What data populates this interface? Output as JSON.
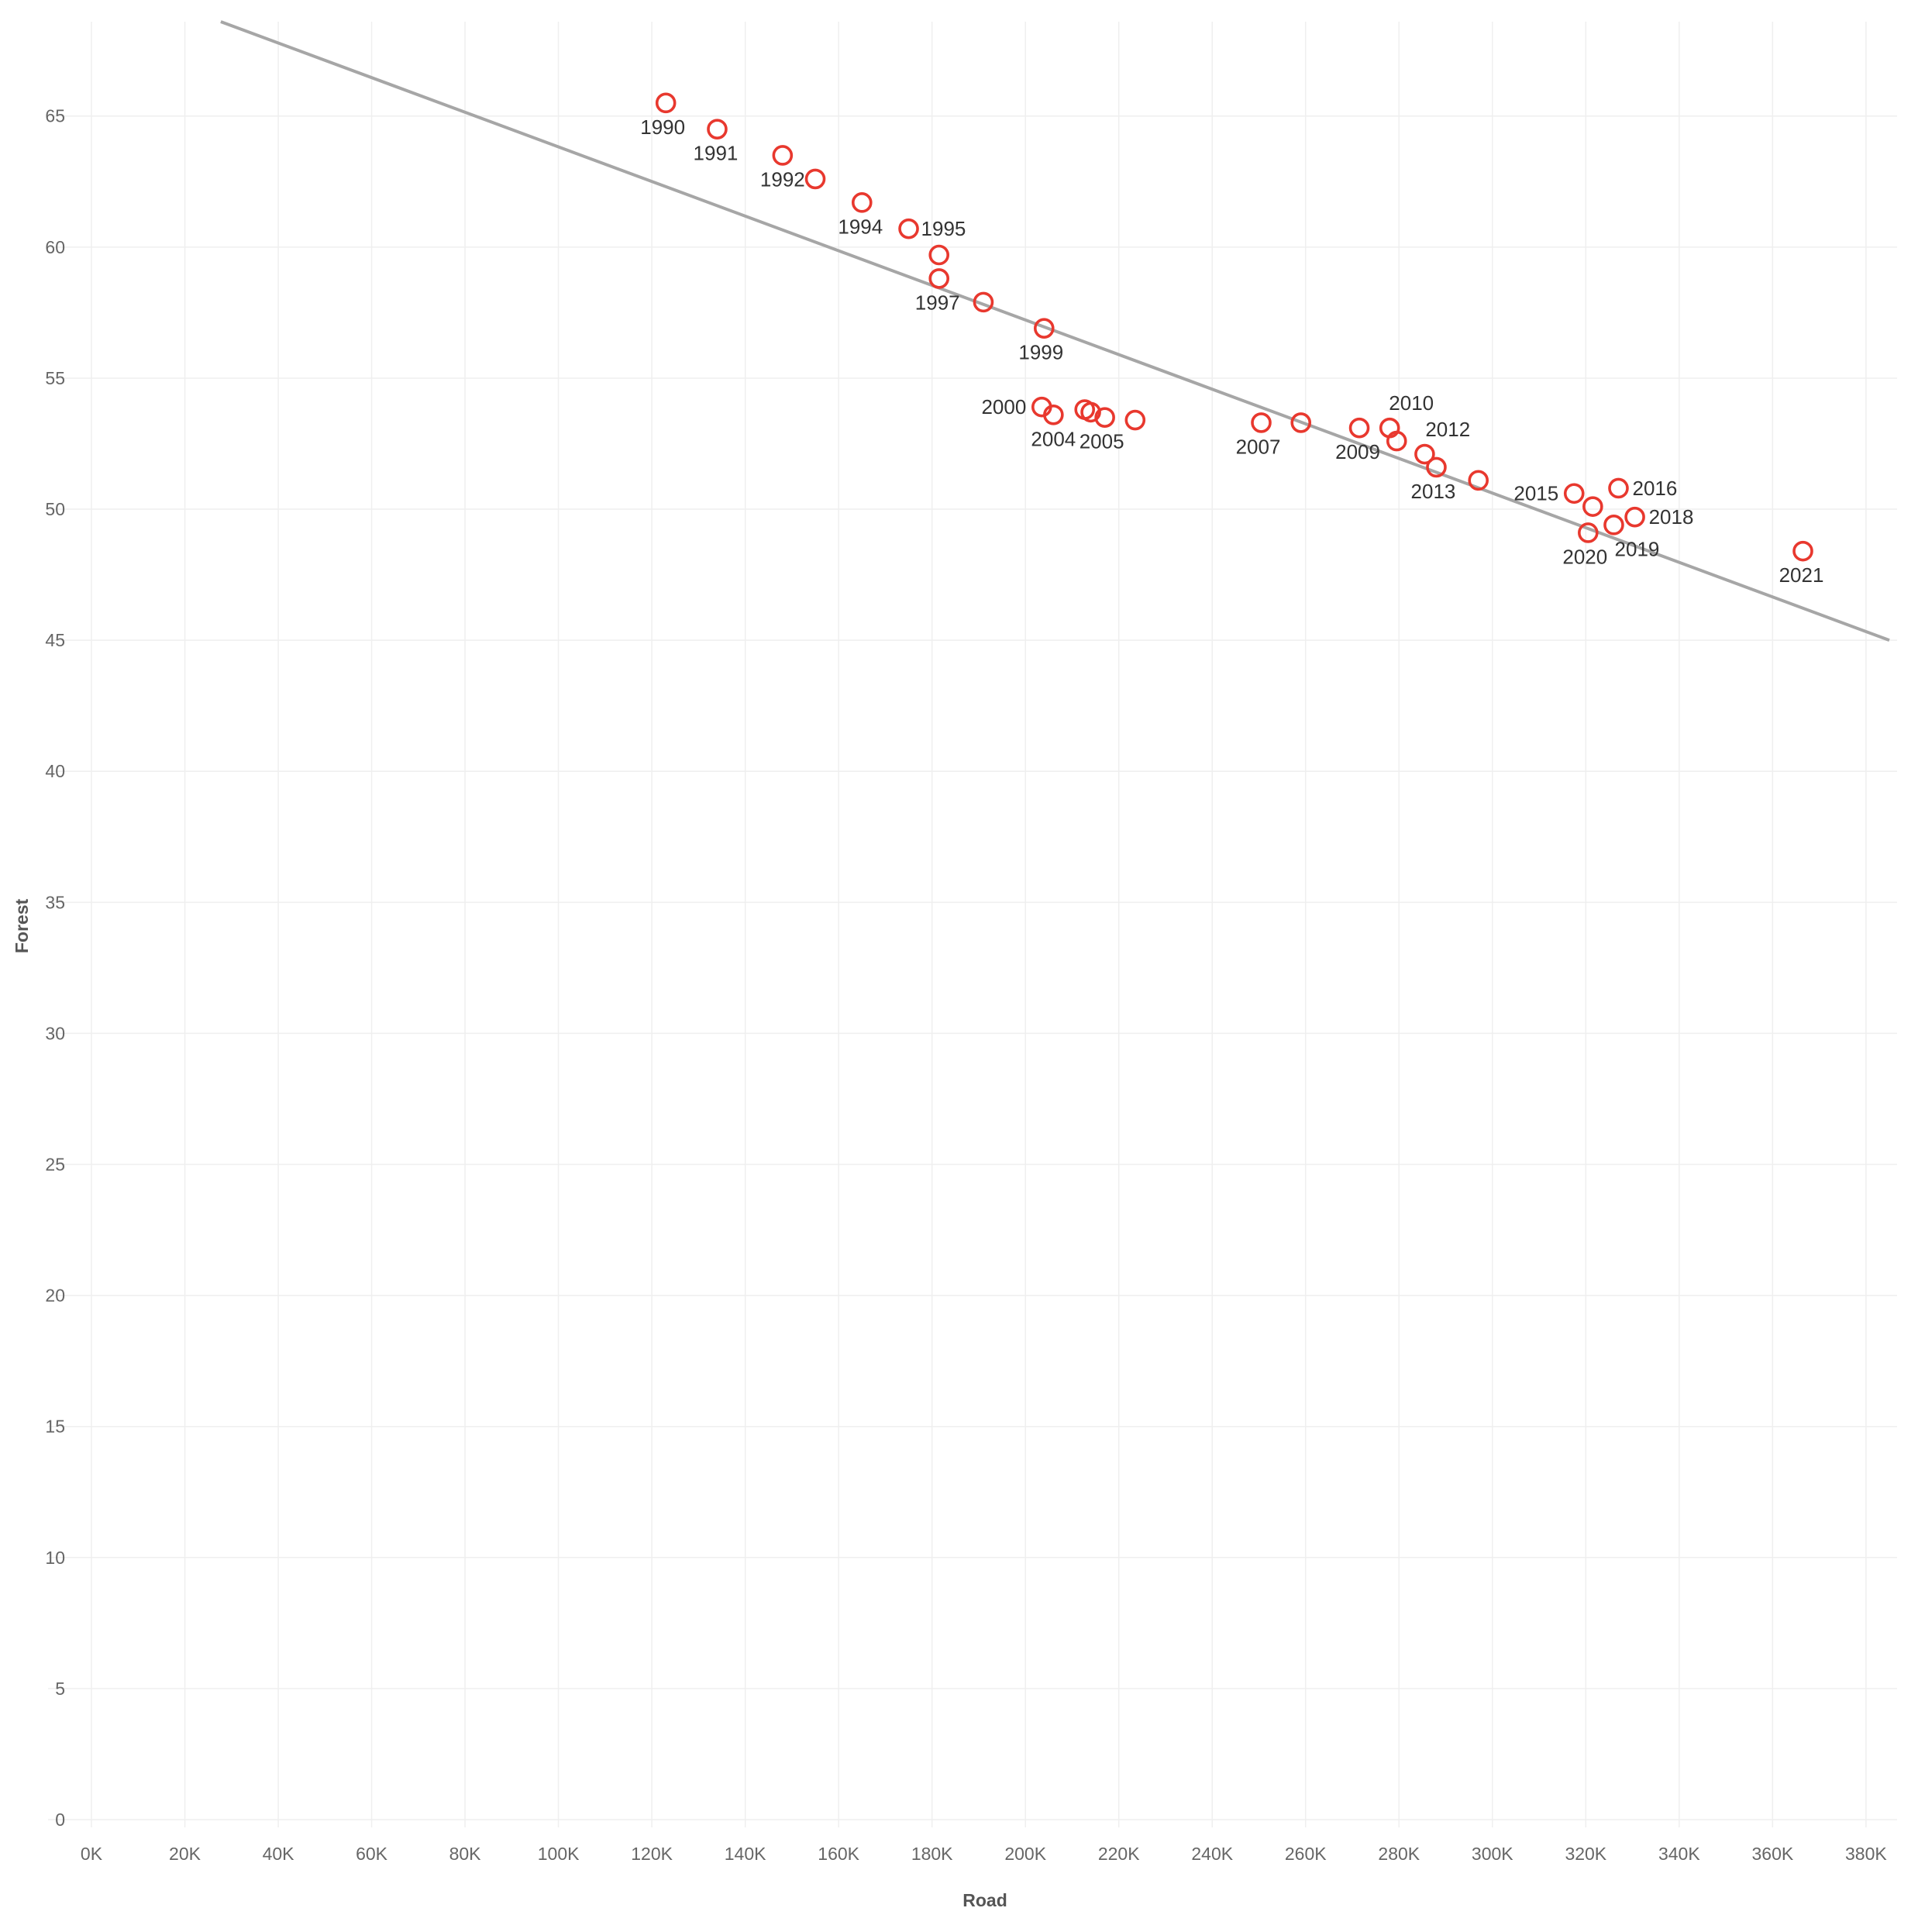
{
  "colors": {
    "point": "#e8382e",
    "trend": "#a6a6a6",
    "grid": "#efefef"
  },
  "chart_data": {
    "type": "scatter",
    "title": "",
    "xlabel": "Road",
    "ylabel": "Forest",
    "xlim": [
      0,
      385000
    ],
    "ylim": [
      0,
      68.6
    ],
    "grid": true,
    "x_ticks": [
      0,
      20000,
      40000,
      60000,
      80000,
      100000,
      120000,
      140000,
      160000,
      180000,
      200000,
      220000,
      240000,
      260000,
      280000,
      300000,
      320000,
      340000,
      360000,
      380000
    ],
    "x_tick_labels": [
      "0K",
      "20K",
      "40K",
      "60K",
      "80K",
      "100K",
      "120K",
      "140K",
      "160K",
      "180K",
      "200K",
      "220K",
      "240K",
      "260K",
      "280K",
      "300K",
      "320K",
      "340K",
      "360K",
      "380K"
    ],
    "y_ticks": [
      0,
      5,
      10,
      15,
      20,
      25,
      30,
      35,
      40,
      45,
      50,
      55,
      60,
      65
    ],
    "y_tick_labels": [
      "0",
      "5",
      "10",
      "15",
      "20",
      "25",
      "30",
      "35",
      "40",
      "45",
      "50",
      "55",
      "60",
      "65"
    ],
    "trend_line": {
      "x": [
        27700,
        385000
      ],
      "y": [
        68.6,
        45.0
      ]
    },
    "points": [
      {
        "label": "1990",
        "x": 123000,
        "y": 65.5
      },
      {
        "label": "1991",
        "x": 134000,
        "y": 64.5
      },
      {
        "label": "1992",
        "x": 148000,
        "y": 63.5
      },
      {
        "label": "",
        "x": 155000,
        "y": 62.6
      },
      {
        "label": "1994",
        "x": 165000,
        "y": 61.7
      },
      {
        "label": "1995",
        "x": 175000,
        "y": 60.7
      },
      {
        "label": "",
        "x": 181500,
        "y": 59.7
      },
      {
        "label": "1997",
        "x": 181500,
        "y": 58.8
      },
      {
        "label": "",
        "x": 191000,
        "y": 57.9
      },
      {
        "label": "1999",
        "x": 204000,
        "y": 56.9
      },
      {
        "label": "2000",
        "x": 203500,
        "y": 53.9
      },
      {
        "label": "2004",
        "x": 206000,
        "y": 53.6
      },
      {
        "label": "",
        "x": 212700,
        "y": 53.8
      },
      {
        "label": "",
        "x": 214000,
        "y": 53.7
      },
      {
        "label": "2005",
        "x": 217000,
        "y": 53.5
      },
      {
        "label": "",
        "x": 223500,
        "y": 53.4
      },
      {
        "label": "2007",
        "x": 250500,
        "y": 53.3
      },
      {
        "label": "",
        "x": 259000,
        "y": 53.3
      },
      {
        "label": "2009",
        "x": 271500,
        "y": 53.1
      },
      {
        "label": "2010",
        "x": 278000,
        "y": 53.1
      },
      {
        "label": "2012",
        "x": 279500,
        "y": 52.6
      },
      {
        "label": "",
        "x": 285500,
        "y": 52.1
      },
      {
        "label": "2013",
        "x": 288000,
        "y": 51.6
      },
      {
        "label": "",
        "x": 297000,
        "y": 51.1
      },
      {
        "label": "2015",
        "x": 317500,
        "y": 50.6
      },
      {
        "label": "",
        "x": 321500,
        "y": 50.1
      },
      {
        "label": "2016",
        "x": 327000,
        "y": 50.8
      },
      {
        "label": "2018",
        "x": 330500,
        "y": 49.7
      },
      {
        "label": "2019",
        "x": 326000,
        "y": 49.4
      },
      {
        "label": "2020",
        "x": 320500,
        "y": 49.1
      },
      {
        "label": "2021",
        "x": 366500,
        "y": 48.4
      }
    ]
  }
}
